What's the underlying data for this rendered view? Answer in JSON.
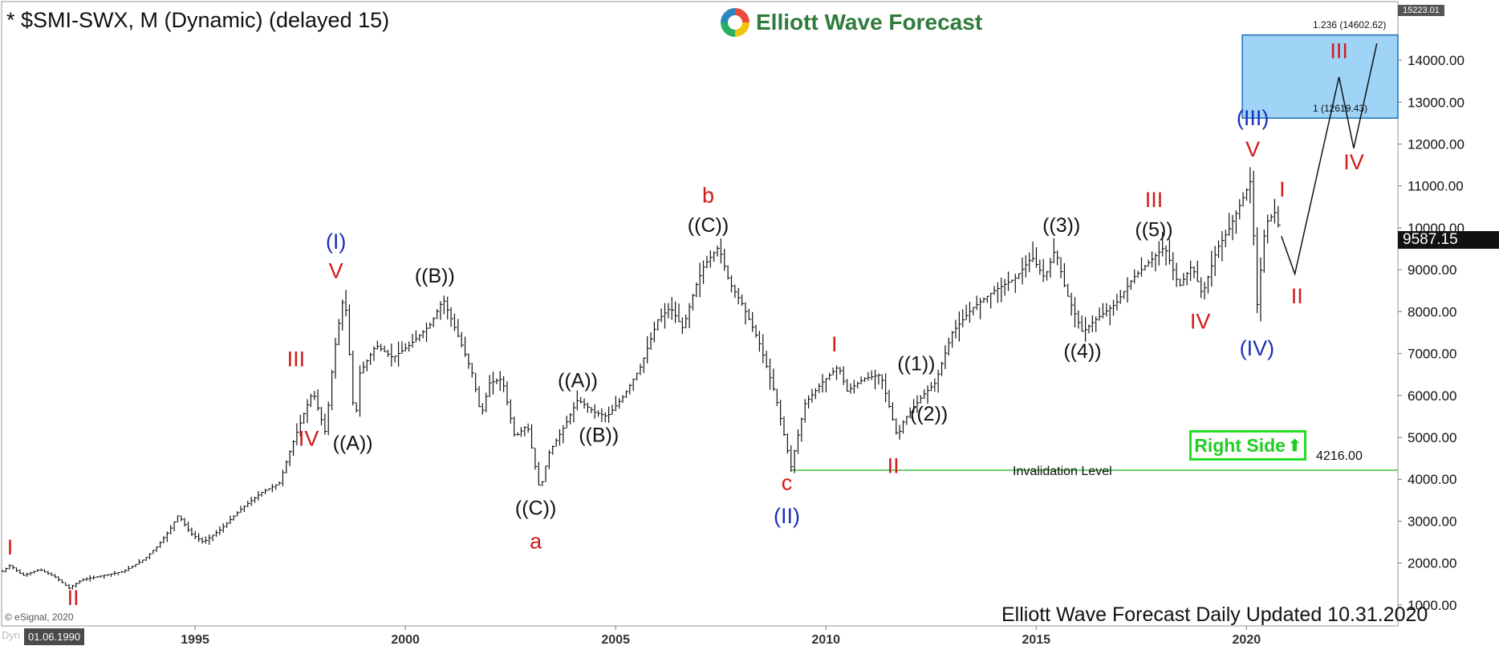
{
  "header": {
    "title": "* $SMI-SWX, M (Dynamic) (delayed 15)",
    "brand": "Elliott Wave Forecast",
    "footer": "Elliott Wave Forecast Daily Updated 10.31.2020",
    "copyright": "© eSignal, 2020",
    "dyn_label": "Dyn",
    "start_date": "01.06.1990"
  },
  "colors": {
    "bar": "#111111",
    "wave_red": "#d11a1a",
    "wave_blue": "#1c2fb8",
    "wave_black": "#111111",
    "target_fill": "#9fd4f7",
    "target_border": "#1f6fb5",
    "invalidation_line": "#3cc43c",
    "right_side": "#22cc22"
  },
  "annotations": {
    "right_side": "Right Side",
    "right_side_icon": "up-arrow-icon",
    "invalidation_label": "Invalidation Level",
    "invalidation_value": "4216.00",
    "fib_upper": "1.236 (14602.62)",
    "fib_lower": "1 (12619.43)",
    "last_price": "9587.15",
    "top_price": "15223.01"
  },
  "chart_data": {
    "type": "ohlc-bar",
    "timeframe": "Monthly",
    "xlim": [
      1990.4,
      2023.6
    ],
    "ylim": [
      500,
      15400
    ],
    "x_ticks": [
      1995,
      2000,
      2005,
      2010,
      2015,
      2020
    ],
    "x_tick_labels": [
      "1995",
      "2000",
      "2005",
      "2010",
      "2015",
      "2020"
    ],
    "y_ticks": [
      1000,
      2000,
      3000,
      4000,
      5000,
      6000,
      7000,
      8000,
      9000,
      10000,
      11000,
      12000,
      13000,
      14000
    ],
    "y_tick_labels": [
      "1000.00",
      "2000.00",
      "3000.00",
      "4000.00",
      "5000.00",
      "6000.00",
      "7000.00",
      "8000.00",
      "9000.00",
      "10000.00",
      "11000.00",
      "12000.00",
      "13000.00",
      "14000.00"
    ],
    "price_path": [
      [
        1990.42,
        1800
      ],
      [
        1990.6,
        1950
      ],
      [
        1990.9,
        1700
      ],
      [
        1991.3,
        1850
      ],
      [
        1991.7,
        1650
      ],
      [
        1992.0,
        1400
      ],
      [
        1992.3,
        1600
      ],
      [
        1992.8,
        1700
      ],
      [
        1993.3,
        1800
      ],
      [
        1993.8,
        2100
      ],
      [
        1994.1,
        2400
      ],
      [
        1994.4,
        2800
      ],
      [
        1994.6,
        3150
      ],
      [
        1994.9,
        2700
      ],
      [
        1995.2,
        2500
      ],
      [
        1995.6,
        2800
      ],
      [
        1996.1,
        3300
      ],
      [
        1996.6,
        3700
      ],
      [
        1997.0,
        3900
      ],
      [
        1997.3,
        4800
      ],
      [
        1997.6,
        5600
      ],
      [
        1997.8,
        6100
      ],
      [
        1998.1,
        5100
      ],
      [
        1998.3,
        7000
      ],
      [
        1998.55,
        8500
      ],
      [
        1998.7,
        6600
      ],
      [
        1998.8,
        5150
      ],
      [
        1998.9,
        6500
      ],
      [
        1999.3,
        7200
      ],
      [
        1999.7,
        6900
      ],
      [
        2000.1,
        7200
      ],
      [
        2000.6,
        7700
      ],
      [
        2000.9,
        8300
      ],
      [
        2001.3,
        7300
      ],
      [
        2001.6,
        6500
      ],
      [
        2001.8,
        5500
      ],
      [
        2002.0,
        6300
      ],
      [
        2002.3,
        6400
      ],
      [
        2002.6,
        5000
      ],
      [
        2002.9,
        5300
      ],
      [
        2003.2,
        3700
      ],
      [
        2003.4,
        4600
      ],
      [
        2003.8,
        5300
      ],
      [
        2004.1,
        5900
      ],
      [
        2004.5,
        5600
      ],
      [
        2004.8,
        5500
      ],
      [
        2005.2,
        6000
      ],
      [
        2005.6,
        6700
      ],
      [
        2006.0,
        7800
      ],
      [
        2006.3,
        8100
      ],
      [
        2006.6,
        7600
      ],
      [
        2006.9,
        8600
      ],
      [
        2007.1,
        9100
      ],
      [
        2007.45,
        9550
      ],
      [
        2007.7,
        8700
      ],
      [
        2008.0,
        8200
      ],
      [
        2008.4,
        7300
      ],
      [
        2008.8,
        6000
      ],
      [
        2009.17,
        4300
      ],
      [
        2009.5,
        5800
      ],
      [
        2009.9,
        6300
      ],
      [
        2010.3,
        6700
      ],
      [
        2010.5,
        6100
      ],
      [
        2010.9,
        6400
      ],
      [
        2011.3,
        6500
      ],
      [
        2011.7,
        5000
      ],
      [
        2011.85,
        5400
      ],
      [
        2012.3,
        6000
      ],
      [
        2012.6,
        6300
      ],
      [
        2013.0,
        7500
      ],
      [
        2013.5,
        8100
      ],
      [
        2014.0,
        8500
      ],
      [
        2014.5,
        8800
      ],
      [
        2014.9,
        9300
      ],
      [
        2015.2,
        8800
      ],
      [
        2015.45,
        9500
      ],
      [
        2015.7,
        8500
      ],
      [
        2016.1,
        7500
      ],
      [
        2016.4,
        7800
      ],
      [
        2016.9,
        8200
      ],
      [
        2017.3,
        8800
      ],
      [
        2017.7,
        9200
      ],
      [
        2018.05,
        9550
      ],
      [
        2018.4,
        8600
      ],
      [
        2018.7,
        9100
      ],
      [
        2018.95,
        8400
      ],
      [
        2019.3,
        9500
      ],
      [
        2019.6,
        10000
      ],
      [
        2020.0,
        10900
      ],
      [
        2020.15,
        11250
      ],
      [
        2020.2,
        7650
      ],
      [
        2020.45,
        10100
      ],
      [
        2020.7,
        10400
      ],
      [
        2020.83,
        9587
      ]
    ],
    "projection": [
      [
        2020.83,
        9800
      ],
      [
        2021.15,
        8900
      ],
      [
        2022.2,
        13600
      ],
      [
        2022.55,
        11900
      ],
      [
        2023.1,
        14400
      ]
    ],
    "target_zone": {
      "x": [
        2019.9,
        2023.6
      ],
      "y": [
        12619.43,
        14602.62
      ]
    },
    "invalidation": {
      "value": 4216,
      "x": [
        2009.17,
        2023.6
      ]
    },
    "wave_labels": [
      {
        "text": "I",
        "x": 1990.6,
        "y": 2200,
        "color": "red"
      },
      {
        "text": "II",
        "x": 1992.1,
        "y": 1000,
        "color": "red"
      },
      {
        "text": "III",
        "x": 1997.4,
        "y": 6700,
        "color": "red"
      },
      {
        "text": "IV",
        "x": 1997.7,
        "y": 4800,
        "color": "red"
      },
      {
        "text": "(I)",
        "x": 1998.35,
        "y": 9500,
        "color": "blue"
      },
      {
        "text": "V",
        "x": 1998.35,
        "y": 8800,
        "color": "red"
      },
      {
        "text": "((A))",
        "x": 1998.75,
        "y": 4700,
        "color": "black"
      },
      {
        "text": "((B))",
        "x": 2000.7,
        "y": 8700,
        "color": "black"
      },
      {
        "text": "((A))",
        "x": 2004.1,
        "y": 6200,
        "color": "black"
      },
      {
        "text": "((B))",
        "x": 2004.6,
        "y": 4900,
        "color": "black"
      },
      {
        "text": "((C))",
        "x": 2003.1,
        "y": 3150,
        "color": "black"
      },
      {
        "text": "a",
        "x": 2003.1,
        "y": 2350,
        "color": "red"
      },
      {
        "text": "b",
        "x": 2007.2,
        "y": 10600,
        "color": "red"
      },
      {
        "text": "((C))",
        "x": 2007.2,
        "y": 9900,
        "color": "black"
      },
      {
        "text": "c",
        "x": 2009.07,
        "y": 3750,
        "color": "red"
      },
      {
        "text": "(II)",
        "x": 2009.07,
        "y": 2950,
        "color": "blue"
      },
      {
        "text": "I",
        "x": 2010.2,
        "y": 7050,
        "color": "red"
      },
      {
        "text": "II",
        "x": 2011.6,
        "y": 4150,
        "color": "red"
      },
      {
        "text": "((1))",
        "x": 2012.15,
        "y": 6600,
        "color": "black"
      },
      {
        "text": "((2))",
        "x": 2012.45,
        "y": 5400,
        "color": "black"
      },
      {
        "text": "((3))",
        "x": 2015.6,
        "y": 9900,
        "color": "black"
      },
      {
        "text": "((4))",
        "x": 2016.1,
        "y": 6900,
        "color": "black"
      },
      {
        "text": "III",
        "x": 2017.8,
        "y": 10500,
        "color": "red"
      },
      {
        "text": "((5))",
        "x": 2017.8,
        "y": 9800,
        "color": "black"
      },
      {
        "text": "IV",
        "x": 2018.9,
        "y": 7600,
        "color": "red"
      },
      {
        "text": "(III)",
        "x": 2020.15,
        "y": 12450,
        "color": "blue"
      },
      {
        "text": "V",
        "x": 2020.15,
        "y": 11700,
        "color": "red"
      },
      {
        "text": "(IV)",
        "x": 2020.25,
        "y": 6950,
        "color": "blue"
      },
      {
        "text": "I",
        "x": 2020.85,
        "y": 10750,
        "color": "red"
      },
      {
        "text": "II",
        "x": 2021.2,
        "y": 8200,
        "color": "red"
      },
      {
        "text": "III",
        "x": 2022.2,
        "y": 14050,
        "color": "red"
      },
      {
        "text": "IV",
        "x": 2022.55,
        "y": 11400,
        "color": "red"
      }
    ]
  }
}
